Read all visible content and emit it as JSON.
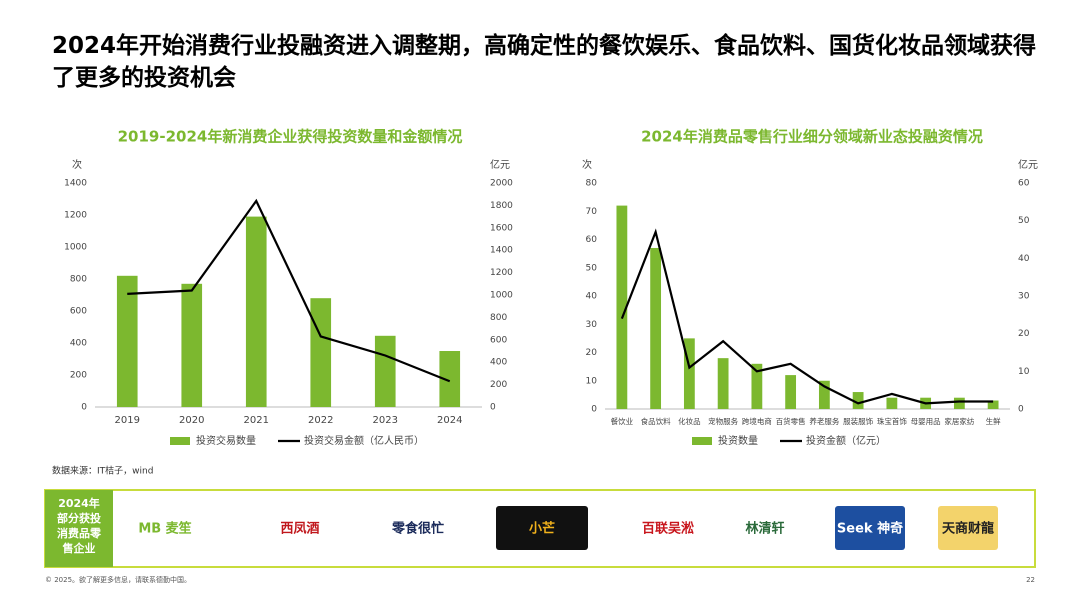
{
  "title": "2024年开始消费行业投融资进入调整期，高确定性的餐饮娱乐、食品饮料、国货化妆品领域获得了更多的投资机会",
  "chart_data": [
    {
      "type": "combo",
      "title": "2019-2024年新消费企业获得投资数量和金额情况",
      "ylabel": "次",
      "y2label": "亿元",
      "categories": [
        "2019",
        "2020",
        "2021",
        "2022",
        "2023",
        "2024"
      ],
      "series": [
        {
          "name": "投资交易数量",
          "type": "bar",
          "color": "#7cb82f",
          "values": [
            820,
            770,
            1190,
            680,
            445,
            350
          ]
        },
        {
          "name": "投资交易金额（亿人民币）",
          "type": "line",
          "axis": "y2",
          "color": "#000000",
          "values": [
            1010,
            1040,
            1840,
            630,
            460,
            230
          ]
        }
      ],
      "ylim": [
        0,
        1400
      ],
      "yticks": [
        0,
        200,
        400,
        600,
        800,
        1000,
        1200,
        1400
      ],
      "y2lim": [
        0,
        2000
      ],
      "y2ticks": [
        0,
        200,
        400,
        600,
        800,
        1000,
        1200,
        1400,
        1600,
        1800,
        2000
      ],
      "grid": false
    },
    {
      "type": "combo",
      "title": "2024年消费品零售行业细分领域新业态投融资情况",
      "ylabel": "次",
      "y2label": "亿元",
      "categories": [
        "餐饮业",
        "食品饮料",
        "化妆品",
        "宠物服务",
        "跨境电商",
        "百货零售",
        "养老服务",
        "服装服饰",
        "珠宝首饰",
        "母婴用品",
        "家居家纺",
        "生鲜"
      ],
      "series": [
        {
          "name": "投资数量",
          "type": "bar",
          "color": "#7cb82f",
          "values": [
            72,
            57,
            25,
            18,
            16,
            12,
            10,
            6,
            4,
            4,
            4,
            3
          ]
        },
        {
          "name": "投资金额（亿元）",
          "type": "line",
          "axis": "y2",
          "color": "#000000",
          "values": [
            24,
            47,
            11,
            18,
            10,
            12,
            6,
            1.5,
            4,
            1.5,
            2,
            2
          ]
        }
      ],
      "ylim": [
        0,
        80
      ],
      "yticks": [
        0,
        10,
        20,
        30,
        40,
        50,
        60,
        70,
        80
      ],
      "y2lim": [
        0,
        60
      ],
      "y2ticks": [
        0,
        10,
        20,
        30,
        40,
        50,
        60
      ],
      "grid": false
    }
  ],
  "source": "数据来源：IT桔子，wind",
  "panel": {
    "label": "2024年部分获投消费品零售企业",
    "logos": [
      "MB 麦笙",
      "西凤酒",
      "零食很忙",
      "小芒",
      "百联吴淞",
      "林清轩",
      "Seek 神奇",
      "天商财龍"
    ]
  },
  "footer": "© 2025。欲了解更多信息，请联系德勤中国。",
  "page": "22"
}
